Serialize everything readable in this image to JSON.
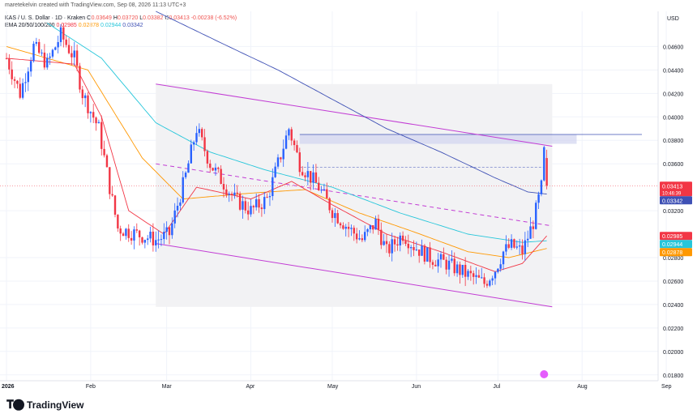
{
  "header": {
    "credit": "maretekelvin created with TradingView.com, Sep 08, 2026 11:13 UTC+3",
    "symbol": "KAS / U. S. Dollar · 1D · Kraken",
    "o_label": "O",
    "o": "0.03649",
    "h_label": "H",
    "h": "0.03720",
    "l_label": "L",
    "l": "0.03382",
    "c_label": "C",
    "c": "0.03413",
    "change": "-0.00238 (-6.52%)",
    "ema_label": "EMA 20/50/100/200",
    "ema_values": [
      "0.02985",
      "0.02878",
      "0.02944",
      "0.03342"
    ]
  },
  "currency": "USD",
  "logo_text": "TradingView",
  "colors": {
    "up": "#2962ff",
    "down": "#f23645",
    "ema20": "#f23645",
    "ema50": "#ff9800",
    "ema100": "#26c6da",
    "ema200": "#3f51b5",
    "channel": "#c23cd4",
    "zone": "#d1d4f0"
  },
  "chart_data": {
    "type": "candlestick",
    "y_axis_ticks": [
      "0.04600",
      "0.04400",
      "0.04200",
      "0.04000",
      "0.03800",
      "0.03600",
      "0.03200",
      "0.02800",
      "0.02600",
      "0.02400",
      "0.02200",
      "0.02000",
      "0.01800"
    ],
    "x_axis_ticks": [
      "2026",
      "Feb",
      "Mar",
      "Apr",
      "May",
      "Jun",
      "Jul",
      "Aug",
      "Sep",
      "Oct"
    ],
    "ylim": [
      0.0175,
      0.049
    ],
    "price_labels": [
      {
        "text": "0.03413",
        "sub": "10:46:39",
        "series": "last"
      },
      {
        "text": "0.03342",
        "series": "ema200"
      },
      {
        "text": "0.02985",
        "series": "ema20"
      },
      {
        "text": "0.02944",
        "series": "ema100"
      },
      {
        "text": "0.02878",
        "series": "ema50"
      }
    ],
    "price_anchors": [
      {
        "d": 0,
        "p": 0.045
      },
      {
        "d": 5,
        "p": 0.042
      },
      {
        "d": 10,
        "p": 0.046
      },
      {
        "d": 15,
        "p": 0.0445
      },
      {
        "d": 20,
        "p": 0.047
      },
      {
        "d": 25,
        "p": 0.045
      },
      {
        "d": 28,
        "p": 0.042
      },
      {
        "d": 34,
        "p": 0.039
      },
      {
        "d": 38,
        "p": 0.034
      },
      {
        "d": 41,
        "p": 0.0305
      },
      {
        "d": 48,
        "p": 0.03
      },
      {
        "d": 55,
        "p": 0.0295
      },
      {
        "d": 60,
        "p": 0.03
      },
      {
        "d": 66,
        "p": 0.035
      },
      {
        "d": 70,
        "p": 0.039
      },
      {
        "d": 75,
        "p": 0.036
      },
      {
        "d": 84,
        "p": 0.033
      },
      {
        "d": 90,
        "p": 0.032
      },
      {
        "d": 96,
        "p": 0.033
      },
      {
        "d": 100,
        "p": 0.036
      },
      {
        "d": 104,
        "p": 0.039
      },
      {
        "d": 108,
        "p": 0.036
      },
      {
        "d": 115,
        "p": 0.034
      },
      {
        "d": 120,
        "p": 0.032
      },
      {
        "d": 126,
        "p": 0.0305
      },
      {
        "d": 131,
        "p": 0.0295
      },
      {
        "d": 136,
        "p": 0.031
      },
      {
        "d": 140,
        "p": 0.0285
      },
      {
        "d": 146,
        "p": 0.03
      },
      {
        "d": 150,
        "p": 0.029
      },
      {
        "d": 156,
        "p": 0.028
      },
      {
        "d": 162,
        "p": 0.0275
      },
      {
        "d": 170,
        "p": 0.0265
      },
      {
        "d": 176,
        "p": 0.0258
      },
      {
        "d": 180,
        "p": 0.027
      },
      {
        "d": 183,
        "p": 0.0285
      },
      {
        "d": 186,
        "p": 0.029
      },
      {
        "d": 190,
        "p": 0.0285
      },
      {
        "d": 194,
        "p": 0.031
      },
      {
        "d": 197,
        "p": 0.034
      },
      {
        "d": 198,
        "p": 0.037
      },
      {
        "d": 199,
        "p": 0.0341
      }
    ],
    "ema_anchors": {
      "ema20": [
        {
          "d": 0,
          "p": 0.045
        },
        {
          "d": 25,
          "p": 0.0445
        },
        {
          "d": 35,
          "p": 0.04
        },
        {
          "d": 45,
          "p": 0.032
        },
        {
          "d": 58,
          "p": 0.03
        },
        {
          "d": 70,
          "p": 0.034
        },
        {
          "d": 90,
          "p": 0.033
        },
        {
          "d": 105,
          "p": 0.0345
        },
        {
          "d": 120,
          "p": 0.0325
        },
        {
          "d": 140,
          "p": 0.03
        },
        {
          "d": 160,
          "p": 0.0285
        },
        {
          "d": 180,
          "p": 0.0268
        },
        {
          "d": 190,
          "p": 0.0275
        },
        {
          "d": 199,
          "p": 0.02985
        }
      ],
      "ema50": [
        {
          "d": 0,
          "p": 0.046
        },
        {
          "d": 30,
          "p": 0.044
        },
        {
          "d": 50,
          "p": 0.0365
        },
        {
          "d": 65,
          "p": 0.033
        },
        {
          "d": 90,
          "p": 0.0335
        },
        {
          "d": 110,
          "p": 0.0338
        },
        {
          "d": 130,
          "p": 0.0318
        },
        {
          "d": 150,
          "p": 0.0302
        },
        {
          "d": 170,
          "p": 0.0285
        },
        {
          "d": 185,
          "p": 0.028
        },
        {
          "d": 199,
          "p": 0.02878
        }
      ],
      "ema100": [
        {
          "d": 15,
          "p": 0.048
        },
        {
          "d": 35,
          "p": 0.045
        },
        {
          "d": 55,
          "p": 0.0395
        },
        {
          "d": 75,
          "p": 0.037
        },
        {
          "d": 95,
          "p": 0.0355
        },
        {
          "d": 120,
          "p": 0.034
        },
        {
          "d": 145,
          "p": 0.0318
        },
        {
          "d": 170,
          "p": 0.03
        },
        {
          "d": 190,
          "p": 0.0293
        },
        {
          "d": 199,
          "p": 0.02944
        }
      ],
      "ema200": [
        {
          "d": 55,
          "p": 0.049
        },
        {
          "d": 80,
          "p": 0.0462
        },
        {
          "d": 100,
          "p": 0.044
        },
        {
          "d": 120,
          "p": 0.0415
        },
        {
          "d": 140,
          "p": 0.039
        },
        {
          "d": 160,
          "p": 0.037
        },
        {
          "d": 180,
          "p": 0.0348
        },
        {
          "d": 192,
          "p": 0.0336
        },
        {
          "d": 199,
          "p": 0.03342
        }
      ]
    },
    "channel": {
      "upper": [
        {
          "d": 55,
          "p": 0.0428
        },
        {
          "d": 201,
          "p": 0.0375
        }
      ],
      "middle": [
        {
          "d": 55,
          "p": 0.036
        },
        {
          "d": 201,
          "p": 0.0307
        }
      ],
      "lower": [
        {
          "d": 55,
          "p": 0.0292
        },
        {
          "d": 201,
          "p": 0.0238
        }
      ]
    },
    "resistance_zone": [
      0.0377,
      0.0385
    ],
    "dashed_level": 0.0357,
    "last_price": 0.03413
  }
}
